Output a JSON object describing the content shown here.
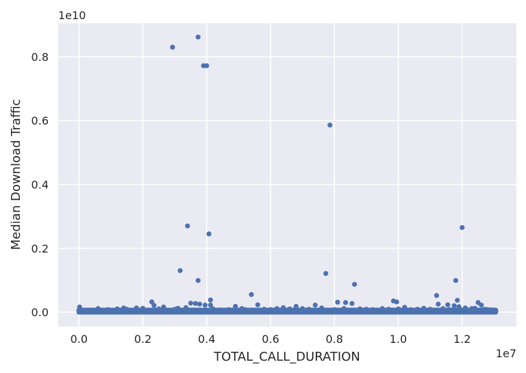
{
  "chart_data": {
    "type": "scatter",
    "title": "",
    "xlabel": "TOTAL_CALL_DURATION",
    "ylabel": "Median Download Traffic",
    "x_offset_label": "1e7",
    "y_offset_label": "1e10",
    "x_scale": 10000000,
    "y_scale": 10000000000,
    "xlim": [
      -0.065,
      1.37
    ],
    "ylim": [
      -0.045,
      0.905
    ],
    "x_ticks": [
      0.0,
      0.2,
      0.4,
      0.6,
      0.8,
      1.0,
      1.2
    ],
    "x_tick_labels": [
      "0.0",
      "0.2",
      "0.4",
      "0.6",
      "0.8",
      "1.0",
      "1.2"
    ],
    "y_ticks": [
      0.0,
      0.2,
      0.4,
      0.6,
      0.8
    ],
    "y_tick_labels": [
      "0.0",
      "0.2",
      "0.4",
      "0.6",
      "0.8"
    ],
    "grid": true,
    "background": "#eaeaf2",
    "grid_color": "#ffffff",
    "point_color": "#4c72b0",
    "points": [
      [
        0.293,
        0.83
      ],
      [
        0.373,
        0.862
      ],
      [
        0.39,
        0.772
      ],
      [
        0.4,
        0.772
      ],
      [
        0.786,
        0.586
      ],
      [
        0.34,
        0.27
      ],
      [
        0.407,
        0.245
      ],
      [
        1.2,
        0.265
      ],
      [
        0.317,
        0.13
      ],
      [
        0.373,
        0.099
      ],
      [
        0.773,
        0.121
      ],
      [
        1.18,
        0.099
      ],
      [
        0.863,
        0.087
      ],
      [
        0.54,
        0.055
      ],
      [
        1.12,
        0.052
      ],
      [
        0.985,
        0.035
      ],
      [
        0.995,
        0.032
      ],
      [
        0.81,
        0.031
      ],
      [
        0.835,
        0.03
      ],
      [
        0.412,
        0.038
      ],
      [
        0.228,
        0.032
      ],
      [
        0.35,
        0.028
      ],
      [
        0.365,
        0.027
      ],
      [
        0.378,
        0.025
      ],
      [
        0.395,
        0.022
      ],
      [
        1.185,
        0.037
      ],
      [
        1.25,
        0.03
      ],
      [
        0.56,
        0.023
      ],
      [
        1.125,
        0.025
      ],
      [
        0.855,
        0.027
      ],
      [
        1.155,
        0.023
      ],
      [
        0.412,
        0.022
      ],
      [
        1.26,
        0.022
      ],
      [
        0.49,
        0.018
      ],
      [
        1.175,
        0.02
      ],
      [
        1.19,
        0.017
      ],
      [
        0.002,
        0.016
      ],
      [
        0.74,
        0.022
      ],
      [
        0.64,
        0.014
      ],
      [
        0.68,
        0.018
      ],
      [
        0.18,
        0.013
      ],
      [
        0.235,
        0.021
      ],
      [
        0.265,
        0.016
      ],
      [
        0.335,
        0.014
      ],
      [
        0.445,
        0.007
      ],
      [
        0.52,
        0.008
      ],
      [
        0.7,
        0.011
      ],
      [
        0.76,
        0.013
      ],
      [
        0.9,
        0.009
      ],
      [
        0.95,
        0.011
      ],
      [
        1.02,
        0.015
      ],
      [
        1.06,
        0.009
      ],
      [
        1.08,
        0.012
      ],
      [
        1.21,
        0.013
      ],
      [
        1.23,
        0.011
      ],
      [
        1.28,
        0.008
      ],
      [
        0.06,
        0.011
      ],
      [
        0.09,
        0.008
      ],
      [
        0.12,
        0.01
      ],
      [
        0.14,
        0.013
      ],
      [
        0.15,
        0.009
      ],
      [
        0.2,
        0.012
      ],
      [
        0.25,
        0.01
      ],
      [
        0.3,
        0.009
      ],
      [
        0.31,
        0.012
      ],
      [
        0.42,
        0.01
      ],
      [
        0.47,
        0.008
      ],
      [
        0.51,
        0.011
      ],
      [
        0.58,
        0.009
      ],
      [
        0.6,
        0.008
      ],
      [
        0.62,
        0.011
      ],
      [
        0.66,
        0.01
      ],
      [
        0.72,
        0.009
      ],
      [
        0.8,
        0.008
      ],
      [
        0.83,
        0.011
      ],
      [
        0.88,
        0.01
      ],
      [
        0.92,
        0.008
      ],
      [
        0.97,
        0.009
      ],
      [
        1.0,
        0.01
      ],
      [
        1.04,
        0.008
      ],
      [
        1.1,
        0.009
      ],
      [
        1.14,
        0.011
      ],
      [
        1.16,
        0.008
      ],
      [
        1.24,
        0.012
      ],
      [
        1.27,
        0.009
      ],
      [
        1.29,
        0.007
      ],
      [
        1.3,
        0.006
      ],
      [
        1.305,
        0.004
      ]
    ],
    "baseline_band": {
      "x_range": [
        0.0,
        1.305
      ],
      "y_values": [
        0.0,
        0.002,
        0.004,
        0.006
      ],
      "step": 0.0025
    }
  }
}
